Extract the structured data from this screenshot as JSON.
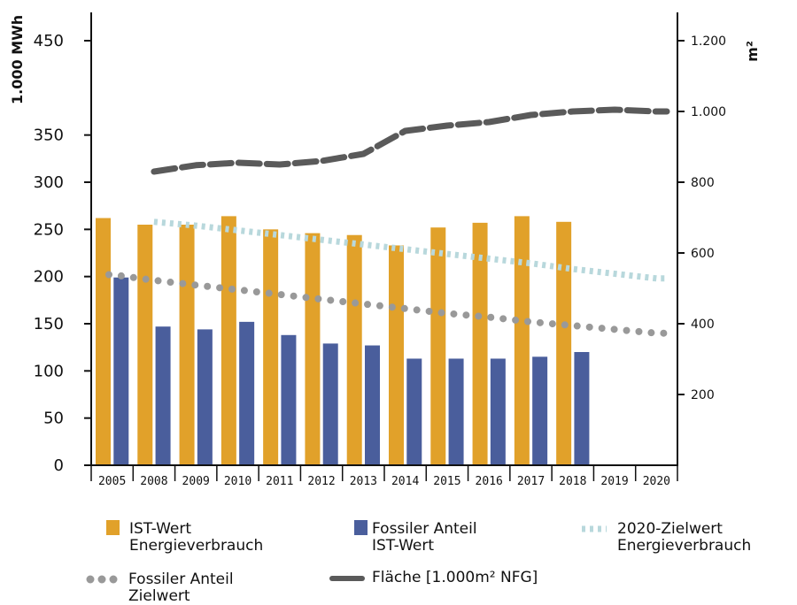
{
  "chart_data": {
    "type": "bar",
    "categories": [
      "2005",
      "2008",
      "2009",
      "2010",
      "2011",
      "2012",
      "2013",
      "2014",
      "2015",
      "2016",
      "2017",
      "2018",
      "2019",
      "2020"
    ],
    "ylabel_left": "1.000 MWh",
    "ylabel_right": "m²",
    "ylim_left": [
      0,
      480
    ],
    "ylim_right": [
      0,
      1280
    ],
    "yticks_left": [
      0,
      50,
      100,
      150,
      200,
      250,
      300,
      350,
      450
    ],
    "yticks_right": [
      {
        "value": 200,
        "label": "200"
      },
      {
        "value": 400,
        "label": "400"
      },
      {
        "value": 600,
        "label": "600"
      },
      {
        "value": 800,
        "label": "800"
      },
      {
        "value": 1000,
        "label": "1.000"
      },
      {
        "value": 1200,
        "label": "1.200"
      }
    ],
    "series": [
      {
        "name": "IST-Wert Energieverbrauch",
        "kind": "bar",
        "axis": "left",
        "color": "#E1A12A",
        "values": [
          262,
          255,
          255,
          264,
          250,
          246,
          244,
          233,
          252,
          257,
          264,
          258,
          null,
          null
        ]
      },
      {
        "name": "Fossiler Anteil IST-Wert",
        "kind": "bar",
        "axis": "left",
        "color": "#4A5E9C",
        "values": [
          199,
          147,
          144,
          152,
          138,
          129,
          127,
          113,
          113,
          113,
          115,
          120,
          null,
          null
        ]
      },
      {
        "name": "2020-Zielwert Energieverbrauch",
        "kind": "line",
        "style": "dashed-light",
        "axis": "left",
        "color": "#B8D8DC",
        "values": [
          null,
          258,
          254,
          249,
          244,
          239,
          234,
          229,
          224,
          219,
          214,
          208,
          203,
          198
        ]
      },
      {
        "name": "Fossiler Anteil Zielwert",
        "kind": "line",
        "style": "dotted",
        "axis": "left",
        "color": "#999999",
        "values": [
          202,
          196,
          191,
          186,
          181,
          176,
          171,
          166,
          161,
          157,
          152,
          148,
          144,
          140
        ]
      },
      {
        "name": "Fläche [1.000m² NFG]",
        "kind": "line",
        "style": "dashed-dark",
        "axis": "right",
        "color": "#5A5A5A",
        "values": [
          null,
          830,
          848,
          855,
          850,
          860,
          880,
          945,
          960,
          970,
          990,
          1000,
          1005,
          1000
        ]
      }
    ],
    "legend": [
      {
        "label_line1": "IST-Wert",
        "label_line2": "Energieverbrauch",
        "swatch": "bar",
        "color": "#E1A12A"
      },
      {
        "label_line1": "Fossiler Anteil",
        "label_line2": "IST-Wert",
        "swatch": "bar",
        "color": "#4A5E9C"
      },
      {
        "label_line1": "2020-Zielwert",
        "label_line2": "Energieverbrauch",
        "swatch": "dashed-light",
        "color": "#B8D8DC"
      },
      {
        "label_line1": "Fossiler Anteil",
        "label_line2": "Zielwert",
        "swatch": "dotted",
        "color": "#999999"
      },
      {
        "label_line1": "Fläche [1.000m² NFG]",
        "label_line2": "",
        "swatch": "dashed-dark",
        "color": "#5A5A5A"
      }
    ],
    "legend_placement": "bottom",
    "grid": false
  }
}
